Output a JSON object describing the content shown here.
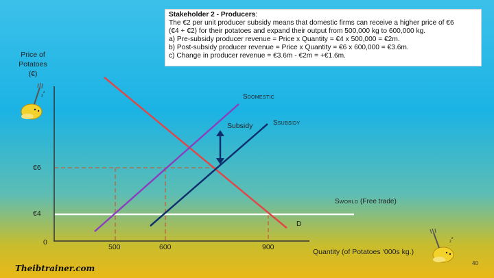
{
  "textbox": {
    "title": "Stakeholder 2 - Producers",
    "lines": [
      "The €2 per unit producer subsidy means that domestic firms can receive a higher price of €6",
      "(€4 + €2) for their potatoes and expand their output from 500,000 kg to 600,000 kg.",
      "a)  Pre-subsidy producer revenue = Price x Quantity = €4 x 500,000 = €2m.",
      "b)  Post-subsidy producer revenue = Price x Quantity = €6 x 600,000 = €3.6m.",
      "c)  Change in producer revenue = €3.6m - €2m = +€1.6m."
    ]
  },
  "axes": {
    "y_label_line1": "Price of",
    "y_label_line2": "Potatoes",
    "y_label_line3": "(€)",
    "x_label": "Quantity (of Potatoes ‘000s kg.)",
    "origin": "0",
    "y_ticks": [
      "€6",
      "€4"
    ],
    "x_ticks": [
      "500",
      "600",
      "900"
    ]
  },
  "curves": {
    "s_domestic": {
      "main": "S",
      "sub": "DOMESTIC",
      "color": "#8a3fbf"
    },
    "s_subsidy": {
      "main": "S",
      "sub": "SUBSIDY",
      "color": "#0e2f6e"
    },
    "s_world": {
      "main": "S",
      "sub": "WORLD",
      "suffix": " (Free trade)",
      "color": "#ffffff"
    },
    "demand": {
      "label": "D",
      "color": "#e04848"
    },
    "subsidy_arrow_label": "Subsidy",
    "guide_color": "#c0603a"
  },
  "footer": {
    "brand": "Theibtrainer.com",
    "page": "40"
  }
}
